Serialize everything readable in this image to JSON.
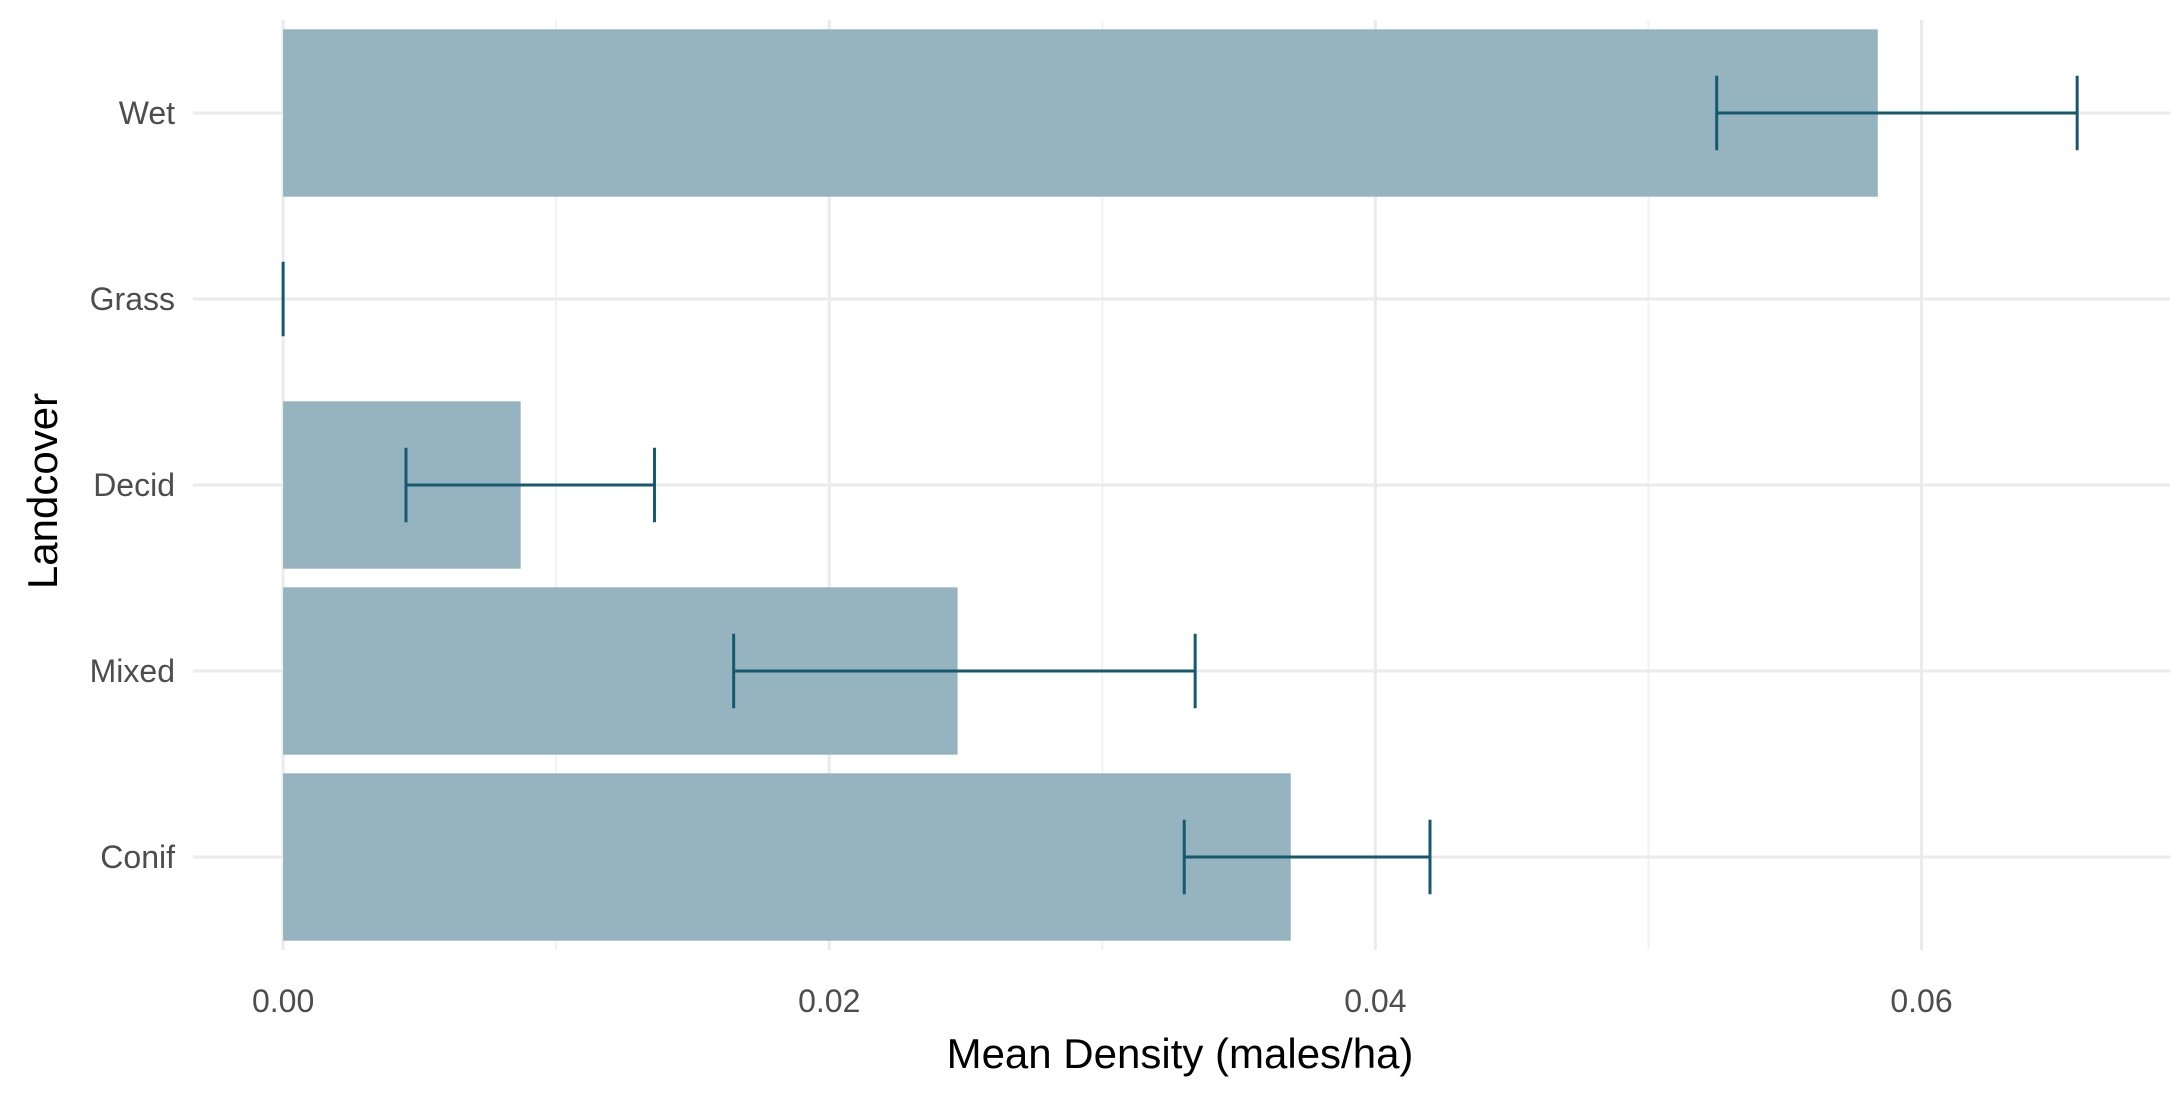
{
  "chart_data": {
    "type": "bar",
    "orientation": "horizontal",
    "title": "",
    "xlabel": "Mean Density (males/ha)",
    "ylabel": "Landcover",
    "categories": [
      "Conif",
      "Mixed",
      "Decid",
      "Grass",
      "Wet"
    ],
    "values": [
      0.0369,
      0.0247,
      0.0087,
      0.0,
      0.0584
    ],
    "error_low": [
      0.033,
      0.0165,
      0.0045,
      0.0,
      0.0525
    ],
    "error_high": [
      0.042,
      0.0334,
      0.0136,
      0.0,
      0.0657
    ],
    "xlim": [
      -0.0033,
      0.0691
    ],
    "x_ticks": [
      0.0,
      0.02,
      0.04,
      0.06
    ],
    "x_tick_labels": [
      "0.00",
      "0.02",
      "0.04",
      "0.06"
    ],
    "grid": true,
    "legend": "none",
    "colors": {
      "bar": "#96b4bf",
      "error_bar": "#16586e",
      "grid_major": "#ebebeb",
      "grid_minor": "#f2f2f2"
    }
  }
}
